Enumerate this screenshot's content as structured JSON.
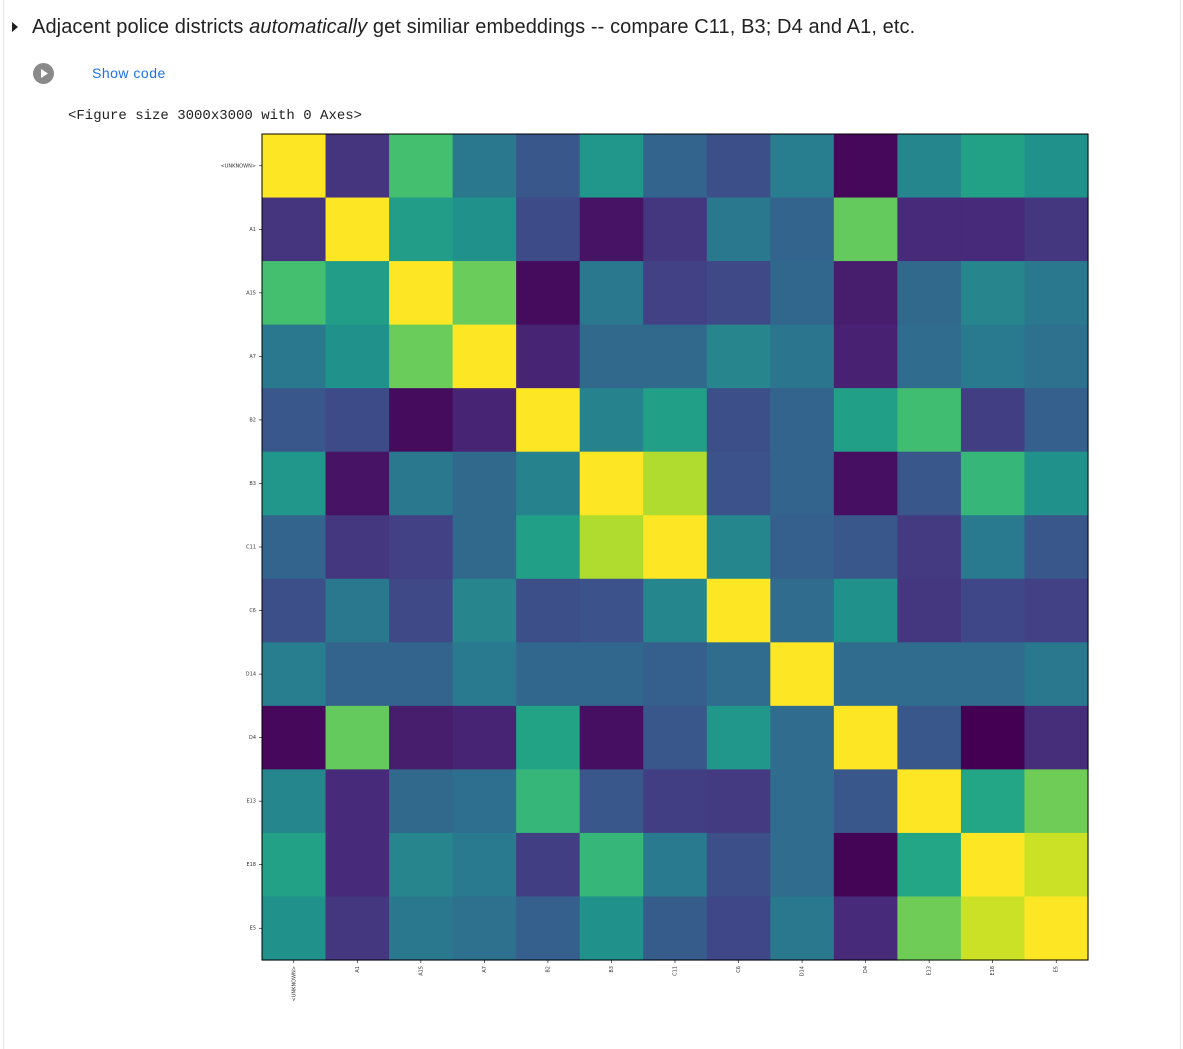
{
  "cell": {
    "heading_prefix": "Adjacent police districts ",
    "heading_emphasis": "automatically",
    "heading_suffix": " get similiar embeddings -- compare C11, B3; D4 and A1, etc.",
    "show_code_label": "Show code",
    "figure_output": "<Figure size 3000x3000 with 0 Axes>"
  },
  "colors": {
    "link": "#1a73e8",
    "colormap": "viridis"
  },
  "chart_data": {
    "type": "heatmap",
    "title": "",
    "xlabel": "",
    "ylabel": "",
    "labels": [
      "<UNKNOWN>",
      "A1",
      "A15",
      "A7",
      "B2",
      "B3",
      "C11",
      "C6",
      "D14",
      "D4",
      "E13",
      "E18",
      "E5"
    ],
    "colormap": "viridis",
    "value_range": [
      0,
      1
    ],
    "matrix": [
      [
        1.0,
        0.15,
        0.7,
        0.4,
        0.27,
        0.52,
        0.32,
        0.24,
        0.42,
        0.02,
        0.46,
        0.57,
        0.5
      ],
      [
        0.15,
        1.0,
        0.55,
        0.5,
        0.23,
        0.05,
        0.16,
        0.4,
        0.32,
        0.76,
        0.12,
        0.12,
        0.16
      ],
      [
        0.7,
        0.55,
        1.0,
        0.77,
        0.03,
        0.4,
        0.19,
        0.22,
        0.33,
        0.08,
        0.34,
        0.45,
        0.4
      ],
      [
        0.4,
        0.5,
        0.77,
        1.0,
        0.1,
        0.34,
        0.34,
        0.45,
        0.39,
        0.09,
        0.35,
        0.41,
        0.37
      ],
      [
        0.27,
        0.23,
        0.03,
        0.1,
        1.0,
        0.44,
        0.56,
        0.24,
        0.32,
        0.56,
        0.69,
        0.18,
        0.3
      ],
      [
        0.52,
        0.05,
        0.4,
        0.34,
        0.44,
        1.0,
        0.88,
        0.25,
        0.32,
        0.04,
        0.27,
        0.66,
        0.5
      ],
      [
        0.32,
        0.16,
        0.19,
        0.34,
        0.56,
        0.88,
        1.0,
        0.46,
        0.3,
        0.27,
        0.17,
        0.41,
        0.27
      ],
      [
        0.24,
        0.4,
        0.22,
        0.45,
        0.24,
        0.25,
        0.46,
        1.0,
        0.35,
        0.5,
        0.16,
        0.21,
        0.19
      ],
      [
        0.42,
        0.32,
        0.32,
        0.41,
        0.33,
        0.33,
        0.3,
        0.35,
        1.0,
        0.35,
        0.35,
        0.35,
        0.4
      ],
      [
        0.02,
        0.76,
        0.08,
        0.1,
        0.58,
        0.04,
        0.27,
        0.52,
        0.35,
        1.0,
        0.27,
        0.0,
        0.13
      ],
      [
        0.46,
        0.12,
        0.34,
        0.36,
        0.66,
        0.27,
        0.18,
        0.17,
        0.35,
        0.27,
        1.0,
        0.59,
        0.78
      ],
      [
        0.57,
        0.12,
        0.45,
        0.41,
        0.18,
        0.66,
        0.41,
        0.24,
        0.35,
        0.01,
        0.59,
        1.0,
        0.92
      ],
      [
        0.5,
        0.16,
        0.4,
        0.37,
        0.3,
        0.5,
        0.29,
        0.21,
        0.4,
        0.12,
        0.78,
        0.92,
        1.0
      ]
    ]
  }
}
